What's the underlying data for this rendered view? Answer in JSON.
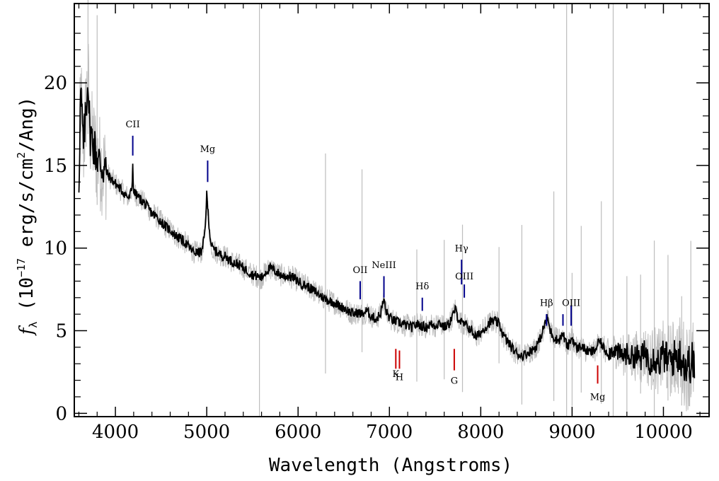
{
  "chart_data": {
    "type": "line",
    "title": "",
    "xlabel": "Wavelength (Angstroms)",
    "ylabel_parts": {
      "f": "f",
      "lambda": "λ",
      "open": " (10",
      "exp": "−17",
      "mid": " erg/s/cm",
      "exp2": "2",
      "close": "/Ang)"
    },
    "xlim": [
      3550,
      10500
    ],
    "ylim": [
      -0.2,
      24.8
    ],
    "x_ticks": [
      4000,
      5000,
      6000,
      7000,
      8000,
      9000,
      10000
    ],
    "x_tick_labels": [
      "4000",
      "5000",
      "6000",
      "7000",
      "8000",
      "9000",
      "10000"
    ],
    "y_ticks": [
      0,
      5,
      10,
      15,
      20
    ],
    "y_tick_labels": [
      "0",
      "5",
      "10",
      "15",
      "20"
    ],
    "grid": false,
    "series": [
      {
        "role": "flux",
        "x": [
          3600,
          3620,
          3650,
          3680,
          3700,
          3720,
          3750,
          3800,
          3850,
          3900,
          3950,
          4000,
          4050,
          4100,
          4150,
          4180,
          4190,
          4200,
          4250,
          4300,
          4350,
          4400,
          4450,
          4500,
          4550,
          4600,
          4650,
          4700,
          4750,
          4800,
          4850,
          4900,
          4950,
          4980,
          5000,
          5020,
          5040,
          5060,
          5100,
          5150,
          5200,
          5250,
          5300,
          5350,
          5400,
          5450,
          5500,
          5550,
          5600,
          5650,
          5700,
          5750,
          5800,
          5850,
          5900,
          5950,
          6000,
          6050,
          6100,
          6150,
          6200,
          6250,
          6300,
          6350,
          6400,
          6450,
          6500,
          6550,
          6600,
          6650,
          6700,
          6750,
          6800,
          6850,
          6900,
          6940,
          6960,
          7000,
          7050,
          7100,
          7150,
          7200,
          7250,
          7300,
          7350,
          7400,
          7450,
          7500,
          7550,
          7600,
          7650,
          7700,
          7720,
          7750,
          7800,
          7850,
          7900,
          7950,
          8000,
          8050,
          8100,
          8150,
          8200,
          8250,
          8300,
          8350,
          8400,
          8450,
          8500,
          8550,
          8600,
          8650,
          8700,
          8730,
          8760,
          8800,
          8850,
          8900,
          8950,
          9000,
          9050,
          9100,
          9150,
          9200,
          9250,
          9300,
          9350,
          9400,
          9450,
          9500,
          9550,
          9600,
          9650,
          9700,
          9750,
          9800,
          9850,
          9900,
          9950,
          10000,
          10050,
          10100,
          10150,
          10200,
          10250,
          10300,
          10340
        ],
        "y": [
          14.0,
          19.5,
          16.0,
          18.5,
          20.5,
          17.0,
          16.5,
          15.5,
          15.0,
          14.6,
          14.2,
          13.9,
          13.6,
          13.3,
          13.0,
          13.6,
          15.0,
          13.4,
          13.1,
          12.8,
          12.5,
          12.1,
          11.9,
          11.6,
          11.3,
          11.1,
          10.8,
          10.6,
          10.4,
          10.1,
          9.8,
          9.7,
          9.8,
          11.0,
          13.2,
          11.8,
          10.5,
          10.0,
          9.8,
          9.6,
          9.5,
          9.3,
          9.1,
          9.0,
          8.8,
          8.6,
          8.4,
          8.3,
          8.2,
          8.6,
          8.8,
          8.6,
          8.4,
          8.3,
          8.3,
          8.2,
          8.0,
          7.8,
          7.7,
          7.5,
          7.3,
          7.1,
          6.9,
          6.8,
          6.7,
          6.5,
          6.4,
          6.2,
          6.0,
          6.1,
          6.0,
          6.2,
          5.9,
          5.7,
          6.0,
          6.9,
          6.2,
          5.8,
          5.6,
          5.5,
          5.4,
          5.3,
          5.2,
          5.4,
          5.3,
          5.2,
          5.4,
          5.3,
          5.5,
          5.2,
          5.4,
          6.0,
          6.3,
          5.8,
          5.4,
          5.3,
          5.0,
          4.6,
          4.9,
          5.2,
          5.5,
          5.6,
          5.4,
          4.7,
          4.3,
          3.9,
          3.6,
          3.5,
          3.6,
          3.8,
          4.0,
          4.5,
          5.4,
          5.8,
          5.0,
          4.6,
          4.4,
          4.8,
          4.0,
          4.6,
          3.9,
          4.1,
          3.8,
          3.7,
          3.8,
          4.4,
          3.9,
          3.6,
          3.9,
          3.7,
          3.5,
          3.6,
          3.4,
          3.5,
          3.3,
          3.7,
          3.2,
          3.4,
          3.1,
          3.5,
          3.2,
          3.3,
          3.5,
          3.4,
          2.8,
          3.1,
          3.0
        ],
        "color": "#000000"
      }
    ],
    "noise_spikes_x": [
      3700,
      3800,
      5577,
      6300,
      6700,
      7300,
      7600,
      7800,
      8200,
      8450,
      8800,
      8940,
      9000,
      9100,
      9320,
      9450,
      9600,
      9750,
      9900,
      10050,
      10200,
      10300
    ],
    "line_markers": [
      {
        "label": "CII",
        "x": 4190,
        "y_low": 15.6,
        "y_high": 16.8,
        "label_y": 17.3,
        "kind": "emission",
        "color": "#00008b"
      },
      {
        "label": "Mg",
        "x": 5010,
        "y_low": 14.0,
        "y_high": 15.3,
        "label_y": 15.8,
        "kind": "emission",
        "color": "#00008b"
      },
      {
        "label": "OII",
        "x": 6680,
        "y_low": 6.9,
        "y_high": 8.0,
        "label_y": 8.5,
        "kind": "emission",
        "color": "#00008b"
      },
      {
        "label": "NeIII",
        "x": 6940,
        "y_low": 7.0,
        "y_high": 8.3,
        "label_y": 8.8,
        "kind": "emission",
        "color": "#00008b"
      },
      {
        "label": "Hδ",
        "x": 7360,
        "y_low": 6.2,
        "y_high": 7.0,
        "label_y": 7.5,
        "kind": "emission",
        "color": "#00008b"
      },
      {
        "label": "Hγ",
        "x": 7790,
        "y_low": 7.8,
        "y_high": 9.3,
        "label_y": 9.8,
        "kind": "emission",
        "color": "#00008b"
      },
      {
        "label": "OIII",
        "x": 7820,
        "y_low": 7.0,
        "y_high": 7.8,
        "label_y": 8.1,
        "kind": "emission",
        "color": "#00008b"
      },
      {
        "label": "Hβ",
        "x": 8720,
        "y_low": 5.3,
        "y_high": 6.0,
        "label_y": 6.5,
        "kind": "emission",
        "color": "#00008b"
      },
      {
        "label": "",
        "x": 8900,
        "y_low": 5.3,
        "y_high": 6.0,
        "label_y": 6.4,
        "kind": "emission",
        "color": "#00008b"
      },
      {
        "label": "OIII",
        "x": 8990,
        "y_low": 5.3,
        "y_high": 6.5,
        "label_y": 6.5,
        "kind": "emission",
        "color": "#00008b"
      },
      {
        "label": "K",
        "x": 7070,
        "y_low": 2.7,
        "y_high": 3.9,
        "label_y": 2.2,
        "kind": "absorption",
        "color": "#cc0000"
      },
      {
        "label": "H",
        "x": 7110,
        "y_low": 2.7,
        "y_high": 3.8,
        "label_y": 2.0,
        "kind": "absorption",
        "color": "#cc0000"
      },
      {
        "label": "G",
        "x": 7710,
        "y_low": 2.6,
        "y_high": 3.9,
        "label_y": 1.8,
        "kind": "absorption",
        "color": "#cc0000"
      },
      {
        "label": "Mg",
        "x": 9280,
        "y_low": 1.8,
        "y_high": 2.9,
        "label_y": 0.8,
        "kind": "absorption",
        "color": "#cc0000"
      }
    ],
    "colors": {
      "flux": "#000000",
      "error": "#bdbdbd",
      "emission": "#00008b",
      "absorption": "#cc0000"
    }
  }
}
